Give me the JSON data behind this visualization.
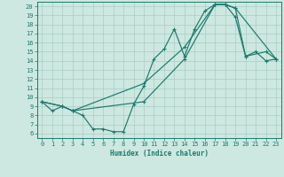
{
  "xlabel": "Humidex (Indice chaleur)",
  "background_color": "#cde8e0",
  "grid_color": "#aaccC4",
  "line_color": "#1a7a6e",
  "xlim": [
    -0.5,
    23.5
  ],
  "ylim": [
    5.5,
    20.5
  ],
  "xticks": [
    0,
    1,
    2,
    3,
    4,
    5,
    6,
    7,
    8,
    9,
    10,
    11,
    12,
    13,
    14,
    15,
    16,
    17,
    18,
    19,
    20,
    21,
    22,
    23
  ],
  "yticks": [
    6,
    7,
    8,
    9,
    10,
    11,
    12,
    13,
    14,
    15,
    16,
    17,
    18,
    19,
    20
  ],
  "line1_x": [
    0,
    1,
    2,
    3,
    4,
    5,
    6,
    7,
    8,
    9,
    10,
    11,
    12,
    13,
    14,
    15,
    16,
    17,
    18,
    19,
    20,
    21,
    22,
    23
  ],
  "line1_y": [
    9.5,
    8.5,
    9.0,
    8.5,
    8.0,
    6.5,
    6.5,
    6.2,
    6.2,
    9.2,
    11.2,
    14.2,
    15.3,
    17.5,
    14.5,
    17.5,
    19.5,
    20.2,
    20.2,
    19.8,
    14.5,
    15.0,
    14.0,
    14.2
  ],
  "line2_x": [
    0,
    2,
    3,
    10,
    14,
    17,
    18,
    19,
    20,
    22,
    23
  ],
  "line2_y": [
    9.5,
    9.0,
    8.5,
    9.5,
    14.2,
    20.2,
    20.2,
    18.8,
    14.5,
    15.0,
    14.2
  ],
  "line3_x": [
    0,
    2,
    3,
    10,
    14,
    17,
    18,
    19,
    23
  ],
  "line3_y": [
    9.5,
    9.0,
    8.5,
    11.5,
    15.5,
    20.2,
    20.2,
    19.8,
    14.2
  ]
}
